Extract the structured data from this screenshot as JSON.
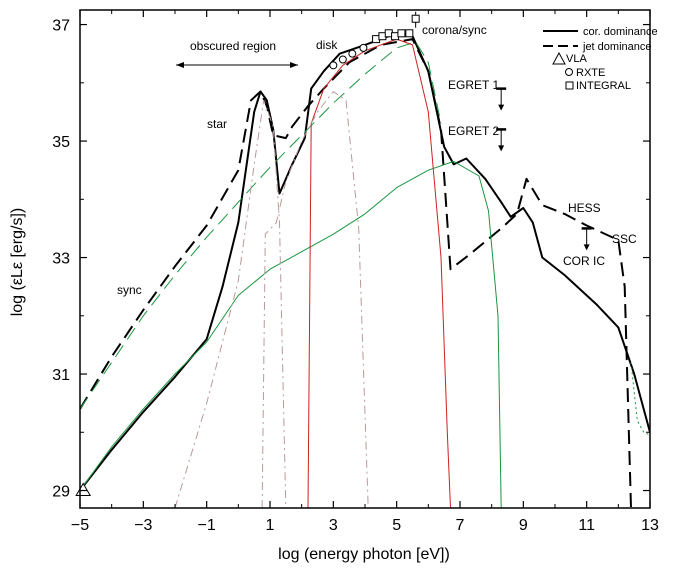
{
  "chart_data": {
    "type": "line",
    "title": "",
    "xlabel": "log (energy photon [eV])",
    "ylabel": "log (εLε [erg/s])",
    "xlim": [
      -5,
      13
    ],
    "ylim": [
      28.7,
      37.25
    ],
    "x_ticks": [
      -5,
      -3,
      -1,
      1,
      3,
      5,
      7,
      9,
      11,
      13
    ],
    "y_ticks": [
      29,
      31,
      33,
      35,
      37
    ],
    "grid": false,
    "legend": {
      "position": "top-right",
      "entries": [
        {
          "label": "cor. dominance",
          "style": "solid"
        },
        {
          "label": "jet dominance",
          "style": "dashed"
        },
        {
          "label": "VLA",
          "marker": "triangle"
        },
        {
          "label": "RXTE",
          "marker": "circle"
        },
        {
          "label": "INTEGRAL",
          "marker": "square"
        }
      ]
    },
    "annotations": {
      "obscured_region": "obscured region",
      "star": "star",
      "disk": "disk",
      "corona_sync": "corona/sync",
      "egret1": "EGRET 1",
      "egret2": "EGRET 2",
      "hess": "HESS",
      "ssc": "SSC",
      "cor_ic": "COR IC",
      "sync": "sync"
    },
    "series": [
      {
        "name": "cor. dominance",
        "color": "#000000",
        "dash": "solid",
        "width": 2,
        "points": [
          [
            -5,
            29.0
          ],
          [
            -4,
            29.7
          ],
          [
            -3,
            30.35
          ],
          [
            -2,
            30.95
          ],
          [
            -1,
            31.6
          ],
          [
            -0.5,
            32.5
          ],
          [
            0,
            33.6
          ],
          [
            0.5,
            35.5
          ],
          [
            0.7,
            35.85
          ],
          [
            0.9,
            35.7
          ],
          [
            1.1,
            35.2
          ],
          [
            1.3,
            34.1
          ],
          [
            1.7,
            34.6
          ],
          [
            2.1,
            35.05
          ],
          [
            2.3,
            35.9
          ],
          [
            2.7,
            36.2
          ],
          [
            3.2,
            36.5
          ],
          [
            4,
            36.65
          ],
          [
            4.5,
            36.75
          ],
          [
            5,
            36.85
          ],
          [
            5.5,
            36.8
          ],
          [
            6,
            36.2
          ],
          [
            6.5,
            34.9
          ],
          [
            6.8,
            34.6
          ],
          [
            7.2,
            34.7
          ],
          [
            7.8,
            34.35
          ],
          [
            8.3,
            33.95
          ],
          [
            8.6,
            33.7
          ],
          [
            9,
            33.85
          ],
          [
            9.3,
            33.6
          ],
          [
            9.6,
            33.0
          ],
          [
            10.3,
            32.7
          ],
          [
            11.3,
            32.2
          ],
          [
            12,
            31.8
          ],
          [
            12.5,
            31.0
          ],
          [
            13,
            30.0
          ]
        ]
      },
      {
        "name": "jet dominance",
        "color": "#000000",
        "dash": "dashed",
        "width": 2,
        "points": [
          [
            -5,
            30.4
          ],
          [
            -4,
            31.3
          ],
          [
            -3,
            32.1
          ],
          [
            -2,
            32.85
          ],
          [
            -1,
            33.55
          ],
          [
            0,
            34.5
          ],
          [
            0.4,
            35.7
          ],
          [
            0.7,
            35.85
          ],
          [
            0.9,
            35.6
          ],
          [
            1.1,
            35.1
          ],
          [
            1.5,
            35.05
          ],
          [
            1.7,
            35.25
          ],
          [
            2.2,
            35.6
          ],
          [
            2.7,
            35.9
          ],
          [
            3.5,
            36.35
          ],
          [
            4.5,
            36.65
          ],
          [
            5.5,
            36.75
          ],
          [
            6,
            36.2
          ],
          [
            6.4,
            35.2
          ],
          [
            6.7,
            32.8
          ],
          [
            7.3,
            33.05
          ],
          [
            8.3,
            33.5
          ],
          [
            8.8,
            33.75
          ],
          [
            9.1,
            34.35
          ],
          [
            9.6,
            33.9
          ],
          [
            10.3,
            33.75
          ],
          [
            11,
            33.55
          ],
          [
            12,
            33.3
          ],
          [
            12.2,
            32.5
          ],
          [
            12.4,
            28.7
          ]
        ]
      },
      {
        "name": "",
        "color": "#1a9640",
        "dash": "solid",
        "width": 1,
        "points": [
          [
            -5,
            29.0
          ],
          [
            -4,
            29.75
          ],
          [
            -3,
            30.4
          ],
          [
            -2,
            31.0
          ],
          [
            -1,
            31.55
          ],
          [
            0,
            32.35
          ],
          [
            1,
            32.8
          ],
          [
            2,
            33.1
          ],
          [
            3,
            33.4
          ],
          [
            4,
            33.75
          ],
          [
            5,
            34.2
          ],
          [
            6,
            34.5
          ],
          [
            6.8,
            34.65
          ],
          [
            7.6,
            34.4
          ],
          [
            7.9,
            33.8
          ],
          [
            8.2,
            32.0
          ],
          [
            8.3,
            28.7
          ]
        ]
      },
      {
        "name": "",
        "color": "#1a9640",
        "dash": "dashed",
        "width": 1,
        "points": [
          [
            -5,
            30.4
          ],
          [
            -4,
            31.2
          ],
          [
            -3,
            32.0
          ],
          [
            -2,
            32.7
          ],
          [
            -1,
            33.35
          ],
          [
            0,
            33.95
          ],
          [
            1,
            34.55
          ],
          [
            2,
            35.1
          ],
          [
            3,
            35.65
          ],
          [
            4,
            36.15
          ],
          [
            5,
            36.6
          ],
          [
            5.6,
            36.7
          ],
          [
            6,
            36.35
          ],
          [
            6.4,
            35.3
          ]
        ]
      },
      {
        "name": "",
        "color": "#cc2222",
        "dash": "solid",
        "width": 1,
        "points": [
          [
            2.2,
            28.7
          ],
          [
            2.3,
            35.3
          ],
          [
            2.7,
            35.9
          ],
          [
            3.3,
            36.3
          ],
          [
            4,
            36.55
          ],
          [
            5,
            36.75
          ],
          [
            5.5,
            36.65
          ],
          [
            6,
            35.5
          ],
          [
            6.4,
            33.0
          ],
          [
            6.6,
            30.0
          ],
          [
            6.7,
            28.7
          ]
        ]
      },
      {
        "name": "",
        "color": "#b89a9a",
        "dash": "dashdot",
        "width": 1,
        "points": [
          [
            -2,
            28.7
          ],
          [
            -1,
            30.5
          ],
          [
            0,
            32.6
          ],
          [
            0.5,
            34.6
          ],
          [
            0.8,
            35.7
          ],
          [
            1.1,
            35.25
          ],
          [
            1.3,
            33.6
          ],
          [
            1.5,
            28.7
          ]
        ]
      },
      {
        "name": "",
        "color": "#b89a9a",
        "dash": "dashdot",
        "width": 1,
        "points": [
          [
            0.75,
            28.7
          ],
          [
            0.85,
            33.4
          ],
          [
            1.2,
            33.6
          ],
          [
            1.5,
            34.3
          ],
          [
            2.0,
            35.0
          ],
          [
            2.5,
            35.5
          ],
          [
            3,
            35.85
          ],
          [
            3.4,
            35.7
          ],
          [
            3.8,
            33.5
          ],
          [
            4.1,
            28.7
          ]
        ]
      },
      {
        "name": "",
        "color": "#1a9640",
        "dash": "dotted",
        "width": 1,
        "points": [
          [
            12.4,
            31.2
          ],
          [
            12.6,
            30.2
          ],
          [
            12.8,
            30.0
          ],
          [
            13,
            29.95
          ]
        ]
      }
    ],
    "observations": {
      "VLA": [
        [
          -4.9,
          29.0
        ]
      ],
      "RXTE": [
        [
          3.0,
          36.3
        ],
        [
          3.3,
          36.4
        ],
        [
          3.6,
          36.5
        ],
        [
          3.95,
          36.6
        ]
      ],
      "INTEGRAL": [
        [
          4.35,
          36.75
        ],
        [
          4.55,
          36.8
        ],
        [
          4.75,
          36.85
        ],
        [
          4.95,
          36.8
        ],
        [
          5.15,
          36.85
        ],
        [
          5.4,
          36.85
        ],
        [
          5.6,
          37.1
        ]
      ],
      "EGRET 1": [
        [
          8.3,
          35.9
        ]
      ],
      "EGRET 2": [
        [
          8.3,
          35.2
        ]
      ],
      "HESS": [
        [
          11.0,
          33.5
        ]
      ]
    }
  }
}
